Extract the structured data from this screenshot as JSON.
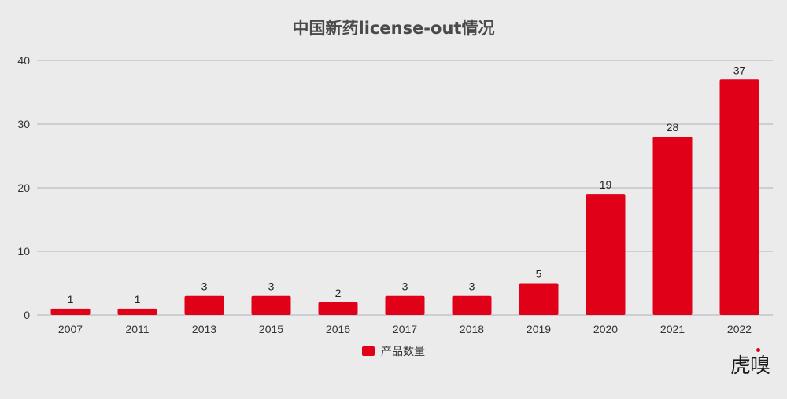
{
  "chart_data": {
    "type": "bar",
    "title": "中国新药license-out情况",
    "categories": [
      "2007",
      "2011",
      "2013",
      "2015",
      "2016",
      "2017",
      "2018",
      "2019",
      "2020",
      "2021",
      "2022"
    ],
    "series": [
      {
        "name": "产品数量",
        "values": [
          1,
          1,
          3,
          3,
          2,
          3,
          3,
          5,
          19,
          28,
          37
        ]
      }
    ],
    "yticks": [
      "0",
      "10",
      "20",
      "30",
      "40"
    ],
    "ylim": [
      0,
      40
    ],
    "grid": true,
    "legend_position": "bottom",
    "bar_color": "#e00018",
    "grid_color": "#b0b0b8"
  },
  "watermark": {
    "text": "虎嗅",
    "accent_color": "#e00018"
  }
}
